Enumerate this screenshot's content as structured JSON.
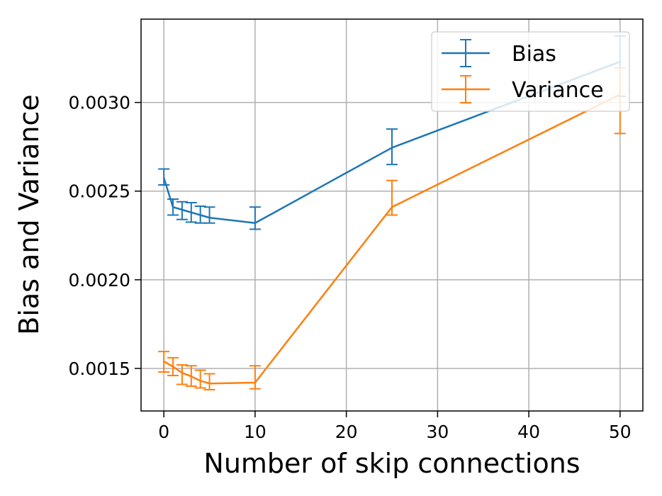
{
  "chart_data": {
    "type": "line",
    "title": "",
    "xlabel": "Number of skip connections",
    "ylabel": "Bias and Variance",
    "xlim": [
      -2.5,
      52.5
    ],
    "ylim": [
      0.00126,
      0.00347
    ],
    "xticks": [
      0,
      10,
      20,
      30,
      40,
      50
    ],
    "xtick_labels": [
      "0",
      "10",
      "20",
      "30",
      "40",
      "50"
    ],
    "yticks": [
      0.0015,
      0.002,
      0.0025,
      0.003
    ],
    "ytick_labels": [
      "0.0015",
      "0.0020",
      "0.0025",
      "0.0030"
    ],
    "grid": true,
    "legend_position": "top-right",
    "series": [
      {
        "name": "Bias",
        "color": "#1f77b4",
        "x": [
          0,
          1,
          2,
          3,
          4,
          5,
          10,
          25,
          50
        ],
        "y": [
          0.002575,
          0.00241,
          0.002395,
          0.00238,
          0.002365,
          0.00235,
          0.00232,
          0.002745,
          0.00323
        ],
        "err_low": [
          0.002535,
          0.002365,
          0.00234,
          0.002325,
          0.00232,
          0.00232,
          0.002285,
          0.00265,
          0.003035
        ],
        "err_high": [
          0.002625,
          0.002455,
          0.00244,
          0.002435,
          0.002415,
          0.00241,
          0.00241,
          0.00285,
          0.003375
        ]
      },
      {
        "name": "Variance",
        "color": "#ff7f0e",
        "x": [
          0,
          1,
          2,
          3,
          4,
          5,
          10,
          25,
          50
        ],
        "y": [
          0.00154,
          0.00151,
          0.001475,
          0.001455,
          0.00143,
          0.001415,
          0.00142,
          0.00241,
          0.003045
        ],
        "err_low": [
          0.00148,
          0.00146,
          0.00141,
          0.0014,
          0.00139,
          0.00138,
          0.001385,
          0.002365,
          0.002825
        ],
        "err_high": [
          0.001595,
          0.00156,
          0.00152,
          0.001515,
          0.00149,
          0.00147,
          0.001515,
          0.00256,
          0.003195
        ]
      }
    ]
  }
}
